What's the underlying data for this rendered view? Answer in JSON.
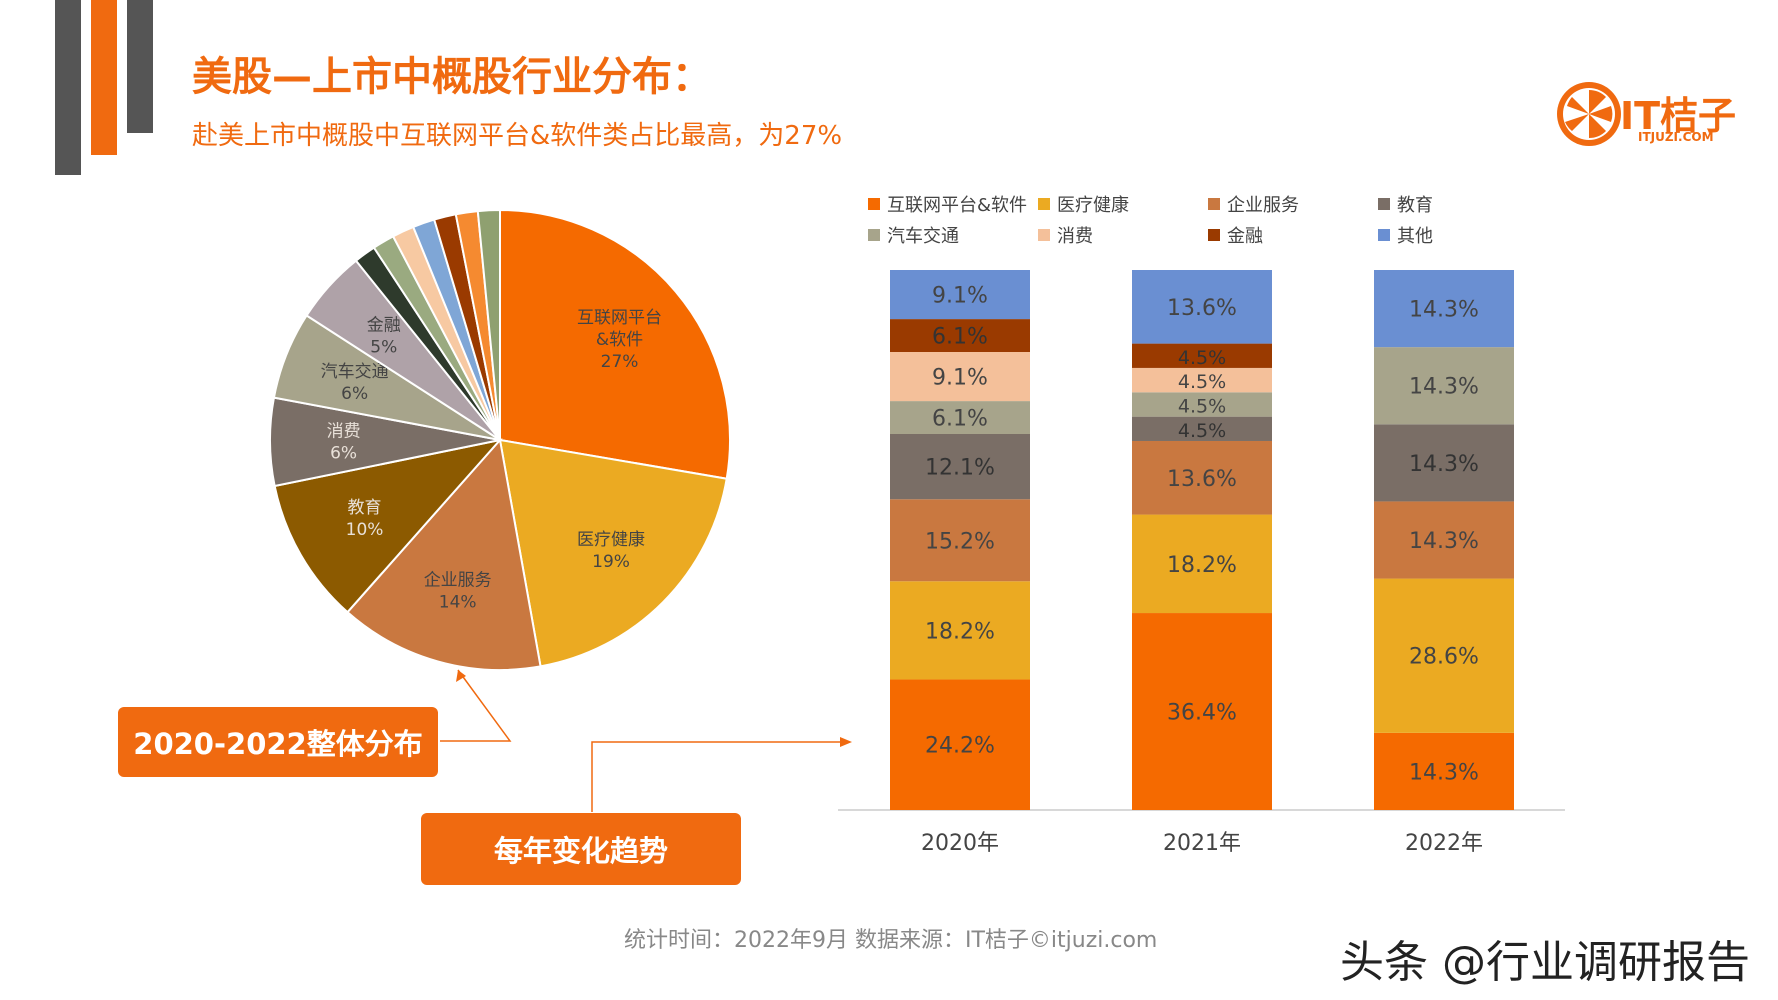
{
  "title": "美股—上市中概股行业分布：",
  "subtitle": "赴美上市中概股中互联网平台&软件类占比最高，为27%",
  "logo": {
    "name": "IT桔子",
    "domain": "ITJUZI.COM",
    "icon": "orange-slice-icon"
  },
  "callouts": {
    "overall": "2020-2022整体分布",
    "trend": "每年变化趋势"
  },
  "footer": "统计时间：2022年9月   数据来源：IT桔子©itjuzi.com",
  "watermark": "头条 @行业调研报告",
  "chart_data": [
    {
      "type": "pie",
      "slices": [
        {
          "name": "互联网平台&软件",
          "value": 27,
          "label": "27%",
          "color": "#F56A00"
        },
        {
          "name": "医疗健康",
          "value": 19,
          "label": "19%",
          "color": "#EBAA22"
        },
        {
          "name": "企业服务",
          "value": 14,
          "label": "14%",
          "color": "#C97840"
        },
        {
          "name": "教育",
          "value": 10,
          "label": "10%",
          "color": "#8C5A00"
        },
        {
          "name": "消费",
          "value": 6,
          "label": "6%",
          "color": "#7A6E66"
        },
        {
          "name": "汽车交通",
          "value": 6,
          "label": "6%",
          "color": "#A7A48B"
        },
        {
          "name": "金融",
          "value": 5,
          "label": "5%",
          "color": "#AFA2A8"
        },
        {
          "name": "",
          "value": 1.5,
          "label": "",
          "color": "#2E3A2C"
        },
        {
          "name": "",
          "value": 1.5,
          "label": "",
          "color": "#9AAA80"
        },
        {
          "name": "",
          "value": 1.5,
          "label": "",
          "color": "#F7C9A2"
        },
        {
          "name": "",
          "value": 1.5,
          "label": "",
          "color": "#7FA6D6"
        },
        {
          "name": "",
          "value": 1.5,
          "label": "",
          "color": "#9A3A00"
        },
        {
          "name": "",
          "value": 1.5,
          "label": "",
          "color": "#F58A30"
        },
        {
          "name": "",
          "value": 1.5,
          "label": "",
          "color": "#8FA070"
        }
      ]
    },
    {
      "type": "bar",
      "stacked": true,
      "categories": [
        "2020年",
        "2021年",
        "2022年"
      ],
      "ylim": [
        0,
        100
      ],
      "legend_position": "top",
      "legend": [
        {
          "name": "互联网平台&软件",
          "color": "#F56A00"
        },
        {
          "name": "医疗健康",
          "color": "#EBAA22"
        },
        {
          "name": "企业服务",
          "color": "#C97840"
        },
        {
          "name": "教育",
          "color": "#7A6E66"
        },
        {
          "name": "汽车交通",
          "color": "#A7A48B"
        },
        {
          "name": "消费",
          "color": "#F4C09A"
        },
        {
          "name": "金融",
          "color": "#9A3A00"
        },
        {
          "name": "其他",
          "color": "#6A8FD2"
        }
      ],
      "series": [
        {
          "name": "互联网平台&软件",
          "values": [
            24.2,
            36.4,
            14.3
          ],
          "labels": [
            "24.2%",
            "36.4%",
            "14.3%"
          ]
        },
        {
          "name": "医疗健康",
          "values": [
            18.2,
            18.2,
            28.6
          ],
          "labels": [
            "18.2%",
            "18.2%",
            "28.6%"
          ]
        },
        {
          "name": "企业服务",
          "values": [
            15.2,
            13.6,
            14.3
          ],
          "labels": [
            "15.2%",
            "13.6%",
            "14.3%"
          ]
        },
        {
          "name": "教育",
          "values": [
            12.1,
            4.5,
            14.3
          ],
          "labels": [
            "12.1%",
            "4.5%",
            "14.3%"
          ]
        },
        {
          "name": "汽车交通",
          "values": [
            6.1,
            4.5,
            14.3
          ],
          "labels": [
            "6.1%",
            "4.5%",
            "14.3%"
          ]
        },
        {
          "name": "消费",
          "values": [
            9.1,
            4.5,
            0
          ],
          "labels": [
            "9.1%",
            "4.5%",
            ""
          ]
        },
        {
          "name": "金融",
          "values": [
            6.1,
            4.5,
            0
          ],
          "labels": [
            "6.1%",
            "4.5%",
            ""
          ]
        },
        {
          "name": "其他",
          "values": [
            9.1,
            13.6,
            14.3
          ],
          "labels": [
            "9.1%",
            "13.6%",
            "14.3%"
          ]
        }
      ]
    }
  ]
}
